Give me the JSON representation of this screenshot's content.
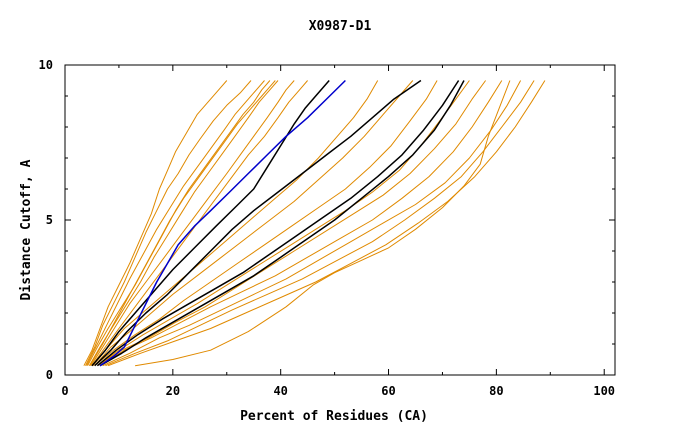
{
  "chart_data": {
    "type": "line",
    "title": "X0987-D1",
    "xlabel": "Percent of Residues (CA)",
    "ylabel": "Distance Cutoff, A",
    "xlim": [
      0,
      102
    ],
    "ylim": [
      0,
      10
    ],
    "x_ticks": [
      0,
      20,
      40,
      60,
      80,
      100
    ],
    "y_ticks": [
      0,
      5,
      10
    ],
    "x_tick_labels": [
      "0",
      "20",
      "40",
      "60",
      "80",
      "100"
    ],
    "y_tick_labels": [
      "0",
      "5",
      "10"
    ],
    "grid": false,
    "legend": "none",
    "colors": {
      "orange": "#e08a00",
      "black": "#000000",
      "blue": "#0000cc"
    },
    "series": [
      {
        "color": "orange",
        "x": [
          3.5,
          5,
          6.5,
          8,
          10,
          12,
          14,
          16,
          17.5,
          19,
          20.5,
          22.5,
          24.5,
          26.5,
          28.5,
          30
        ],
        "y": [
          0.3,
          0.8,
          1.5,
          2.2,
          2.9,
          3.6,
          4.4,
          5.2,
          6.0,
          6.6,
          7.2,
          7.8,
          8.4,
          8.8,
          9.2,
          9.5
        ]
      },
      {
        "color": "orange",
        "x": [
          3.8,
          5.5,
          7,
          9,
          11,
          13,
          15,
          17,
          19,
          21,
          23,
          25,
          27.5,
          30,
          32.5,
          34.5
        ],
        "y": [
          0.3,
          0.9,
          1.6,
          2.3,
          3.0,
          3.8,
          4.6,
          5.3,
          6.0,
          6.5,
          7.1,
          7.6,
          8.2,
          8.7,
          9.1,
          9.5
        ]
      },
      {
        "color": "orange",
        "x": [
          4,
          6,
          8,
          10,
          12,
          14.5,
          17,
          19.5,
          22,
          24.5,
          27,
          29.5,
          31.5,
          33.5,
          35.5,
          37
        ],
        "y": [
          0.3,
          1.0,
          1.7,
          2.4,
          3.1,
          3.9,
          4.7,
          5.4,
          6.1,
          6.7,
          7.3,
          7.9,
          8.4,
          8.8,
          9.2,
          9.5
        ]
      },
      {
        "color": "orange",
        "x": [
          4.2,
          6,
          8,
          10.5,
          13,
          15.5,
          18,
          20.5,
          23,
          25.5,
          28,
          30.5,
          33,
          35,
          36.5,
          38
        ],
        "y": [
          0.3,
          0.9,
          1.5,
          2.2,
          2.9,
          3.7,
          4.5,
          5.3,
          6.0,
          6.6,
          7.2,
          7.8,
          8.4,
          8.8,
          9.2,
          9.5
        ]
      },
      {
        "color": "orange",
        "x": [
          4.5,
          6.5,
          9,
          11.5,
          14,
          16.5,
          19,
          21.5,
          24,
          26.5,
          29,
          31.5,
          34,
          36,
          38,
          39.5
        ],
        "y": [
          0.3,
          0.9,
          1.6,
          2.3,
          3.0,
          3.8,
          4.5,
          5.2,
          5.9,
          6.5,
          7.1,
          7.7,
          8.3,
          8.8,
          9.2,
          9.5
        ]
      },
      {
        "color": "orange",
        "x": [
          4.6,
          7,
          9.5,
          12,
          14.5,
          17,
          19.5,
          22,
          24.5,
          27,
          29.5,
          32,
          34.5,
          36.5,
          38,
          39
        ],
        "y": [
          0.3,
          1.0,
          1.8,
          2.6,
          3.4,
          4.2,
          5.0,
          5.7,
          6.3,
          6.9,
          7.5,
          8.1,
          8.6,
          9.0,
          9.3,
          9.5
        ]
      },
      {
        "color": "orange",
        "x": [
          4.8,
          7,
          9.5,
          12,
          15,
          18,
          21,
          24,
          27,
          30,
          32.5,
          35,
          37.5,
          39.5,
          41,
          42.5
        ],
        "y": [
          0.3,
          0.9,
          1.6,
          2.3,
          3.0,
          3.7,
          4.4,
          5.1,
          5.8,
          6.5,
          7.1,
          7.7,
          8.3,
          8.8,
          9.2,
          9.5
        ]
      },
      {
        "color": "orange",
        "x": [
          5,
          7.5,
          10,
          13,
          16,
          19,
          22,
          25,
          28,
          31,
          34,
          37,
          39.5,
          41.5,
          43.5,
          45
        ],
        "y": [
          0.3,
          0.9,
          1.5,
          2.2,
          2.9,
          3.6,
          4.3,
          5.0,
          5.7,
          6.4,
          7.1,
          7.7,
          8.3,
          8.8,
          9.2,
          9.5
        ]
      },
      {
        "color": "orange",
        "x": [
          5.2,
          8,
          11,
          15,
          19,
          23,
          27,
          31,
          35,
          39,
          43,
          47,
          50.5,
          53.5,
          56,
          58
        ],
        "y": [
          0.3,
          0.9,
          1.5,
          2.1,
          2.7,
          3.3,
          3.9,
          4.5,
          5.1,
          5.7,
          6.3,
          7.0,
          7.7,
          8.3,
          8.9,
          9.5
        ]
      },
      {
        "color": "orange",
        "x": [
          5.5,
          8.5,
          12,
          16,
          20,
          24.5,
          29,
          33.5,
          38,
          42.5,
          47,
          51.5,
          55.5,
          59,
          62,
          64.5
        ],
        "y": [
          0.3,
          0.9,
          1.4,
          2.0,
          2.6,
          3.2,
          3.8,
          4.4,
          5.0,
          5.6,
          6.3,
          7.0,
          7.7,
          8.4,
          9.0,
          9.5
        ]
      },
      {
        "color": "orange",
        "x": [
          5.5,
          9,
          13,
          17.5,
          22,
          27,
          32,
          37,
          42,
          47,
          52,
          56.5,
          60.5,
          64,
          67,
          69
        ],
        "y": [
          0.3,
          0.8,
          1.3,
          1.8,
          2.4,
          3.0,
          3.6,
          4.2,
          4.8,
          5.4,
          6.0,
          6.7,
          7.4,
          8.2,
          8.9,
          9.5
        ]
      },
      {
        "color": "orange",
        "x": [
          6,
          10,
          14.5,
          19.5,
          24.5,
          30,
          35.5,
          41,
          46.5,
          52,
          57,
          62,
          66,
          69.5,
          72.5,
          75
        ],
        "y": [
          0.3,
          0.8,
          1.3,
          1.8,
          2.3,
          2.9,
          3.5,
          4.1,
          4.7,
          5.3,
          5.9,
          6.6,
          7.4,
          8.2,
          8.9,
          9.5
        ]
      },
      {
        "color": "orange",
        "x": [
          6,
          10.5,
          15.5,
          20.5,
          26,
          31.5,
          37,
          42.5,
          48,
          53.5,
          59,
          64,
          68.5,
          72.5,
          75.5,
          78
        ],
        "y": [
          0.3,
          0.8,
          1.2,
          1.7,
          2.2,
          2.8,
          3.4,
          4.0,
          4.6,
          5.2,
          5.8,
          6.5,
          7.3,
          8.1,
          8.9,
          9.5
        ]
      },
      {
        "color": "orange",
        "x": [
          6.5,
          11,
          16,
          21.5,
          27,
          33,
          39,
          45,
          51,
          57,
          62.5,
          67.5,
          72,
          75.5,
          78.5,
          81
        ],
        "y": [
          0.3,
          0.8,
          1.2,
          1.7,
          2.2,
          2.7,
          3.2,
          3.8,
          4.4,
          5.0,
          5.7,
          6.4,
          7.2,
          8.0,
          8.8,
          9.5
        ]
      },
      {
        "color": "orange",
        "x": [
          7,
          12,
          17.5,
          23,
          29,
          35,
          41,
          47,
          53,
          59,
          65,
          70.5,
          75,
          79,
          82,
          84.5
        ],
        "y": [
          0.3,
          0.7,
          1.2,
          1.6,
          2.1,
          2.6,
          3.1,
          3.7,
          4.3,
          4.9,
          5.5,
          6.2,
          7.0,
          7.9,
          8.7,
          9.5
        ]
      },
      {
        "color": "orange",
        "x": [
          7.5,
          13,
          19,
          25,
          31,
          37.5,
          44,
          50.5,
          57,
          63,
          68.5,
          73.5,
          77.5,
          81,
          84.5,
          87
        ],
        "y": [
          0.3,
          0.7,
          1.1,
          1.6,
          2.1,
          2.6,
          3.1,
          3.7,
          4.3,
          5.0,
          5.7,
          6.4,
          7.2,
          8.0,
          8.8,
          9.5
        ]
      },
      {
        "color": "orange",
        "x": [
          8,
          14,
          20.5,
          27,
          33.5,
          40,
          46.5,
          53,
          59.5,
          65.5,
          71,
          76,
          80,
          83.5,
          86.5,
          89
        ],
        "y": [
          0.3,
          0.7,
          1.1,
          1.5,
          2.0,
          2.5,
          3.0,
          3.6,
          4.2,
          4.9,
          5.6,
          6.4,
          7.2,
          8.0,
          8.8,
          9.5
        ]
      },
      {
        "color": "orange",
        "x": [
          13,
          20,
          27,
          34,
          41,
          46,
          50,
          55,
          60,
          65,
          70,
          74,
          77,
          78.5,
          80.5,
          82.5
        ],
        "y": [
          0.3,
          0.5,
          0.8,
          1.4,
          2.2,
          2.9,
          3.3,
          3.7,
          4.1,
          4.7,
          5.4,
          6.1,
          6.8,
          7.7,
          8.6,
          9.5
        ]
      },
      {
        "color": "black",
        "x": [
          5,
          7.5,
          10,
          13,
          16.5,
          20,
          24,
          28,
          31.5,
          35,
          37.5,
          40,
          42.5,
          44.5,
          46.5,
          49
        ],
        "y": [
          0.3,
          0.8,
          1.4,
          2.0,
          2.7,
          3.4,
          4.1,
          4.8,
          5.4,
          6.0,
          6.7,
          7.4,
          8.1,
          8.6,
          9.0,
          9.5
        ]
      },
      {
        "color": "black",
        "x": [
          5.5,
          8.5,
          11.5,
          15,
          19,
          23,
          27,
          31,
          35,
          39.5,
          44,
          48.5,
          53,
          57,
          61,
          66
        ],
        "y": [
          0.3,
          0.8,
          1.4,
          2.0,
          2.6,
          3.3,
          4.0,
          4.7,
          5.3,
          5.9,
          6.5,
          7.1,
          7.7,
          8.3,
          8.9,
          9.5
        ]
      },
      {
        "color": "black",
        "x": [
          6,
          9.5,
          13.5,
          18,
          23,
          28,
          33,
          38,
          43,
          48,
          53,
          58,
          62.5,
          66.5,
          70,
          73
        ],
        "y": [
          0.3,
          0.8,
          1.3,
          1.8,
          2.3,
          2.8,
          3.3,
          3.9,
          4.5,
          5.1,
          5.7,
          6.4,
          7.1,
          7.9,
          8.7,
          9.5
        ]
      },
      {
        "color": "black",
        "x": [
          6.5,
          10.5,
          15,
          20,
          25,
          30,
          35,
          40,
          45,
          50,
          55,
          60,
          64.5,
          68.5,
          71.5,
          74
        ],
        "y": [
          0.3,
          0.7,
          1.2,
          1.7,
          2.2,
          2.7,
          3.2,
          3.8,
          4.4,
          5.0,
          5.7,
          6.4,
          7.1,
          7.9,
          8.7,
          9.5
        ]
      },
      {
        "color": "blue",
        "x": [
          6.5,
          9,
          11,
          13,
          15,
          17,
          19,
          21,
          24,
          27,
          30.5,
          34,
          37.5,
          41,
          45,
          48.5,
          52
        ],
        "y": [
          0.3,
          0.6,
          0.9,
          1.6,
          2.3,
          3.0,
          3.6,
          4.2,
          4.8,
          5.3,
          5.9,
          6.5,
          7.1,
          7.7,
          8.3,
          8.9,
          9.5
        ]
      }
    ]
  }
}
